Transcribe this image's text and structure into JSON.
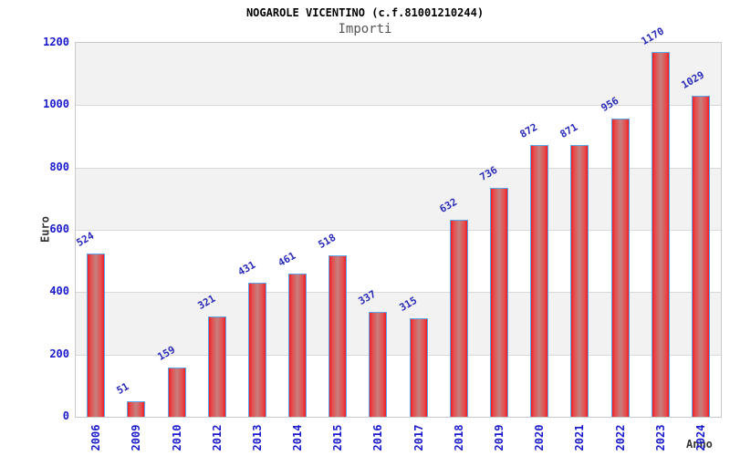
{
  "chart_data": {
    "type": "bar",
    "title": "NOGAROLE VICENTINO (c.f.81001210244)",
    "subtitle": "Importi",
    "xlabel": "Anno",
    "ylabel": "Euro",
    "categories": [
      "2006",
      "2009",
      "2010",
      "2012",
      "2013",
      "2014",
      "2015",
      "2016",
      "2017",
      "2018",
      "2019",
      "2020",
      "2021",
      "2022",
      "2023",
      "2024"
    ],
    "values": [
      524,
      51,
      159,
      321,
      431,
      461,
      518,
      337,
      315,
      632,
      736,
      872,
      871,
      956,
      1170,
      1029
    ],
    "ylim": [
      0,
      1200
    ],
    "yticks": [
      0,
      200,
      400,
      600,
      800,
      1000,
      1200
    ],
    "grid": true,
    "legend": false,
    "layout_hints": {
      "bar_label_rotation_deg": -30,
      "x_tick_rotation_deg": -90,
      "alternating_bands": true
    },
    "colors": {
      "bar_edge": "#ee1c25",
      "bar_inner": "#e84a4a",
      "bar_mid": "#c4807f",
      "bar_border": "#5aa7ea",
      "value_label": "#2a2ab8",
      "tick_label": "#1a1acc",
      "band": "#f2f2f2",
      "gridline": "#d9d9d9",
      "plot_border": "#c9c9c9",
      "axis_title": "#333333",
      "title": "#000000",
      "subtitle": "#555555"
    }
  }
}
